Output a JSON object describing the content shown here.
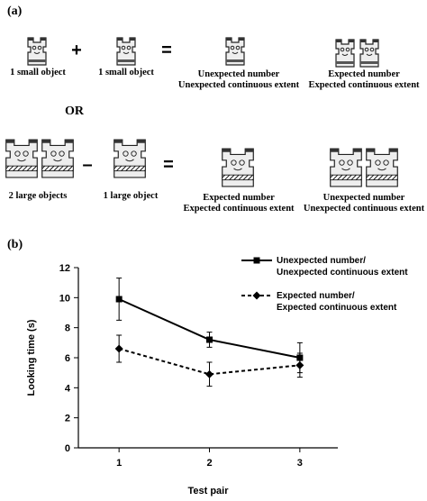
{
  "panel_a": {
    "label": "(a)",
    "or": "OR",
    "operators": [
      "+",
      "=",
      "–",
      "="
    ],
    "captions": [
      {
        "lines": [
          "1 small object"
        ]
      },
      {
        "lines": [
          "1 small object"
        ]
      },
      {
        "lines": [
          "Unexpected number",
          "Unexpected continuous extent"
        ]
      },
      {
        "lines": [
          "Expected number",
          "Expected continuous extent"
        ]
      },
      {
        "lines": [
          "2 large objects"
        ]
      },
      {
        "lines": [
          "1 large object"
        ]
      },
      {
        "lines": [
          "Expected number",
          "Expected continuous extent"
        ]
      },
      {
        "lines": [
          "Unexpected number",
          "Unexpected continuous extent"
        ]
      }
    ]
  },
  "chart_data": {
    "type": "line",
    "panel_label": "(b)",
    "x_label": "Test pair",
    "y_label": "Looking time (s)",
    "x": [
      1,
      2,
      3
    ],
    "xlim": [
      0.55,
      3.42
    ],
    "xticks": [
      1,
      2,
      3
    ],
    "ylim": [
      0,
      12
    ],
    "yticks": [
      0,
      2,
      4,
      6,
      8,
      10,
      12
    ],
    "series": [
      {
        "name": [
          "Unexpected number/",
          "Unexpected continuous extent"
        ],
        "color": "#000000",
        "marker": "square",
        "line_style": "solid",
        "values": [
          9.9,
          7.2,
          6.0
        ],
        "errors": [
          1.4,
          0.5,
          1.0
        ]
      },
      {
        "name": [
          "Expected number/",
          "Expected continuous extent"
        ],
        "color": "#000000",
        "marker": "diamond",
        "line_style": "dashed",
        "values": [
          6.6,
          4.9,
          5.5
        ],
        "errors": [
          0.9,
          0.8,
          0.8
        ]
      }
    ]
  }
}
